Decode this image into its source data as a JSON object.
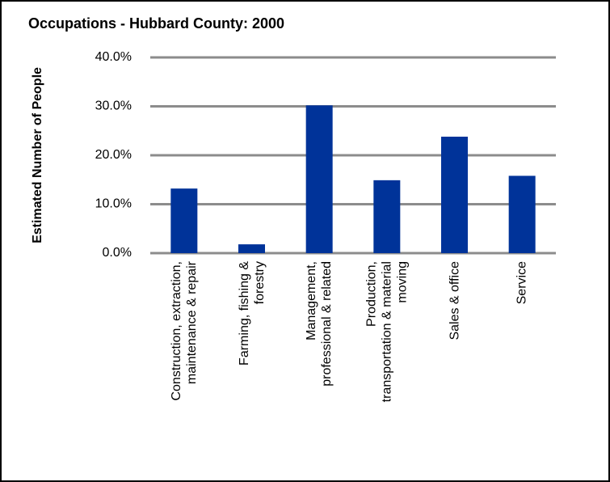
{
  "chart_data": {
    "type": "bar",
    "title": "Occupations - Hubbard County: 2000",
    "y_label": "Estimated Number of People",
    "categories": [
      "Construction, extraction,\nmaintenance & repair",
      "Farming, fishing &\nforestry",
      "Management,\nprofessional & related",
      "Production,\ntransportation & material\nmoving",
      "Sales & office",
      "Service"
    ],
    "values": [
      13.2,
      1.8,
      30.2,
      14.9,
      23.8,
      15.8
    ],
    "color": "#003399",
    "ylim": [
      0,
      40
    ],
    "yticks": [
      {
        "value": 0,
        "label": "0.0%"
      },
      {
        "value": 10,
        "label": "10.0%"
      },
      {
        "value": 20,
        "label": "20.0%"
      },
      {
        "value": 30,
        "label": "30.0%"
      },
      {
        "value": 40,
        "label": "40.0%"
      }
    ],
    "grid": true
  }
}
